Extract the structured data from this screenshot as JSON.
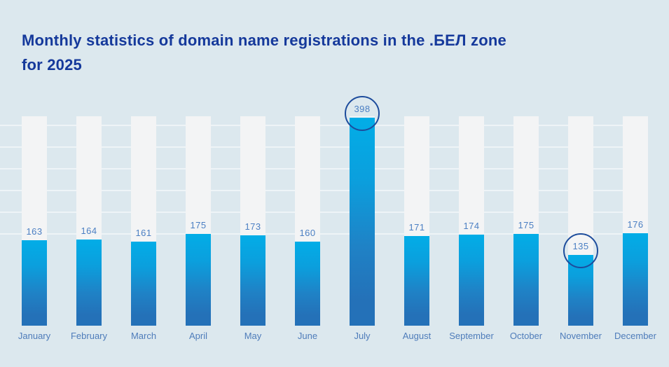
{
  "header": {
    "title": "Monthly statistics of domain name registrations in the .БЕЛ zone\nfor 2025"
  },
  "chart_data": {
    "type": "bar",
    "title": "Monthly statistics of domain name registrations in the .БЕЛ zone for 2025",
    "categories": [
      "January",
      "February",
      "March",
      "April",
      "May",
      "June",
      "July",
      "August",
      "September",
      "October",
      "November",
      "December"
    ],
    "values": [
      163,
      164,
      161,
      175,
      173,
      160,
      398,
      171,
      174,
      175,
      135,
      176
    ],
    "xlabel": "",
    "ylabel": "",
    "ylim": [
      0,
      400
    ],
    "grid": true,
    "legend_position": "none",
    "highlighted_categories": [
      "July",
      "November"
    ],
    "colors": {
      "page_bg": "#dce8ee",
      "track": "#f3f4f5",
      "bar_top": "#02ade7",
      "bar_bottom": "#2471b8",
      "title": "#15399b",
      "value_label": "#4b7fc3",
      "month_label": "#4e7cba",
      "circle": "#1d4c9c",
      "gridline": "rgba(255,255,255,0.5)"
    }
  }
}
